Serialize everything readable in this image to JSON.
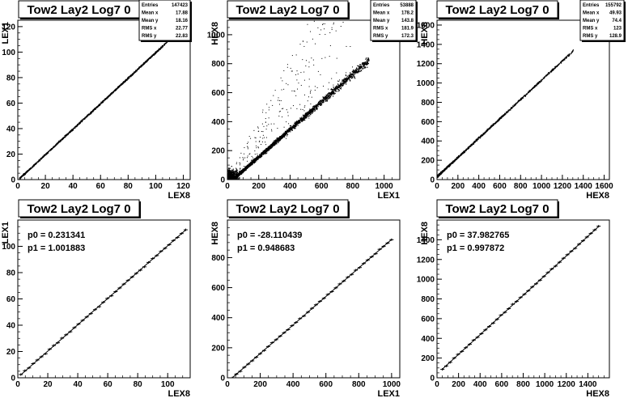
{
  "chart_data": [
    {
      "type": "scatter",
      "title": "Tow2 Lay2 Log7 0",
      "xlabel": "LEX8",
      "ylabel": "LEX1",
      "xlim": [
        0,
        125
      ],
      "ylim": [
        0,
        125
      ],
      "xticks": [
        0,
        20,
        40,
        60,
        80,
        100,
        120
      ],
      "yticks": [
        0,
        20,
        40,
        60,
        80,
        100,
        120
      ],
      "stats": [
        {
          "label": "Entries",
          "value": "147423"
        },
        {
          "label": "Mean x",
          "value": "17.88"
        },
        {
          "label": "Mean y",
          "value": "18.16"
        },
        {
          "label": "RMS x",
          "value": "22.77"
        },
        {
          "label": "RMS y",
          "value": "22.83"
        }
      ],
      "band": {
        "x_range": [
          1,
          108
        ],
        "slope": 1.0,
        "intercept": 0.2
      }
    },
    {
      "type": "scatter",
      "title": "Tow2 Lay2 Log7 0",
      "xlabel": "LEX1",
      "ylabel": "HEX8",
      "xlim": [
        0,
        1100
      ],
      "ylim": [
        0,
        1100
      ],
      "xticks": [
        0,
        200,
        400,
        600,
        800,
        1000
      ],
      "yticks": [
        0,
        200,
        400,
        600,
        800,
        1000
      ],
      "stats": [
        {
          "label": "Entries",
          "value": "53888"
        },
        {
          "label": "Mean x",
          "value": "178.2"
        },
        {
          "label": "Mean y",
          "value": "143.8"
        },
        {
          "label": "RMS x",
          "value": "181.9"
        },
        {
          "label": "RMS y",
          "value": "172.3"
        }
      ],
      "band": {
        "x_range": [
          0,
          900
        ],
        "slope": 0.95,
        "intercept": -28
      }
    },
    {
      "type": "scatter",
      "title": "Tow2 Lay2 Log7 0",
      "xlabel": "HEX8",
      "ylabel": "HEX8",
      "xlim": [
        0,
        1650
      ],
      "ylim": [
        0,
        1650
      ],
      "xticks": [
        0,
        200,
        400,
        600,
        800,
        1000,
        1200,
        1400,
        1600
      ],
      "yticks": [
        0,
        200,
        400,
        600,
        800,
        1000,
        1200,
        1400,
        1600
      ],
      "stats": [
        {
          "label": "Entries",
          "value": "155792"
        },
        {
          "label": "Mean x",
          "value": "49.93"
        },
        {
          "label": "Mean y",
          "value": "74.4"
        },
        {
          "label": "RMS x",
          "value": "123"
        },
        {
          "label": "RMS y",
          "value": "128.9"
        }
      ],
      "band": {
        "x_range": [
          0,
          1300
        ],
        "slope": 1.0,
        "intercept": 38
      }
    },
    {
      "type": "line",
      "title": "Tow2 Lay2 Log7 0",
      "xlabel": "LEX8",
      "ylabel": "LEX1",
      "xlim": [
        0,
        115
      ],
      "ylim": [
        0,
        120
      ],
      "xticks": [
        0,
        20,
        40,
        60,
        80,
        100
      ],
      "yticks": [
        0,
        20,
        40,
        60,
        80,
        100
      ],
      "fit": {
        "p0_label": "p0 = 0.231341",
        "p1_label": "p1 = 1.001883",
        "p0": 0.231341,
        "p1": 1.001883
      },
      "x_range": [
        2,
        112
      ]
    },
    {
      "type": "line",
      "title": "Tow2 Lay2 Log7 0",
      "xlabel": "LEX1",
      "ylabel": "HEX8",
      "xlim": [
        0,
        1050
      ],
      "ylim": [
        0,
        1050
      ],
      "xticks": [
        0,
        200,
        400,
        600,
        800,
        1000
      ],
      "yticks": [
        0,
        200,
        400,
        600,
        800
      ],
      "fit": {
        "p0_label": "p0 = -28.110439",
        "p1_label": "p1 = 0.948683",
        "p0": -28.110439,
        "p1": 0.948683
      },
      "x_range": [
        30,
        1000
      ]
    },
    {
      "type": "line",
      "title": "Tow2 Lay2 Log7 0",
      "xlabel": "HEX8",
      "ylabel": "HEX8",
      "xlim": [
        0,
        1600
      ],
      "ylim": [
        0,
        1600
      ],
      "xticks": [
        0,
        200,
        400,
        600,
        800,
        1000,
        1200,
        1400
      ],
      "yticks": [
        0,
        200,
        400,
        600,
        800,
        1000,
        1200,
        1400
      ],
      "fit": {
        "p0_label": "p0 = 37.982765",
        "p1_label": "p1 = 0.997872",
        "p0": 37.982765,
        "p1": 0.997872
      },
      "x_range": [
        50,
        1500
      ]
    }
  ]
}
